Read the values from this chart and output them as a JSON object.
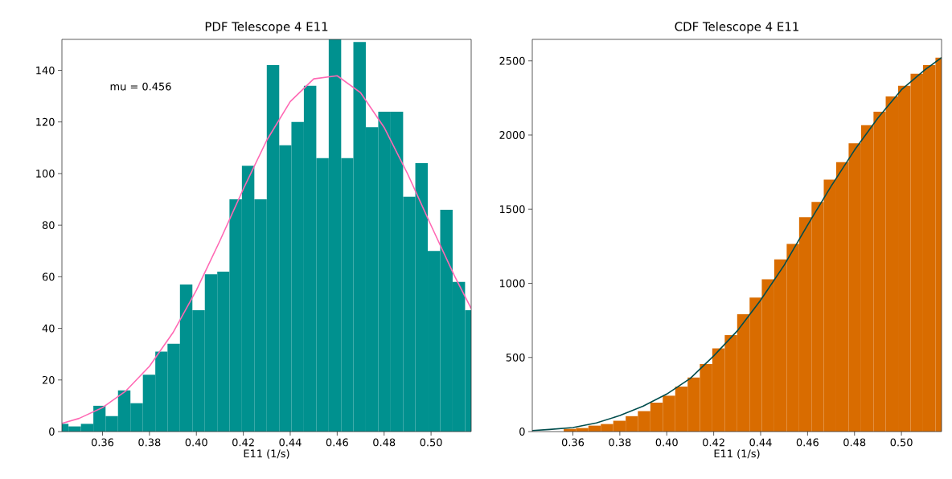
{
  "chart_data": [
    {
      "type": "histogram",
      "title": "PDF Telescope 4 E11",
      "xlabel": "E11 (1/s)",
      "color": "#00918f",
      "bins": [
        0.3427,
        0.3455,
        0.3508,
        0.3561,
        0.3613,
        0.3666,
        0.3719,
        0.3772,
        0.3825,
        0.3877,
        0.393,
        0.3983,
        0.4036,
        0.4089,
        0.4141,
        0.4194,
        0.4247,
        0.43,
        0.4353,
        0.4405,
        0.4458,
        0.4511,
        0.4564,
        0.4617,
        0.4669,
        0.4722,
        0.4775,
        0.4828,
        0.4881,
        0.4933,
        0.4986,
        0.5039,
        0.5092,
        0.5145,
        0.5171
      ],
      "values": [
        3,
        2,
        3,
        10,
        6,
        16,
        11,
        22,
        31,
        34,
        57,
        47,
        61,
        62,
        90,
        103,
        90,
        142,
        111,
        120,
        134,
        106,
        152,
        106,
        151,
        118,
        124,
        124,
        91,
        104,
        70,
        86,
        58,
        47
      ],
      "series": [
        {
          "type": "line",
          "color": "#ff69b4",
          "x": [
            0.3427,
            0.35,
            0.36,
            0.37,
            0.38,
            0.39,
            0.4,
            0.41,
            0.42,
            0.43,
            0.44,
            0.45,
            0.46,
            0.47,
            0.48,
            0.49,
            0.5,
            0.51,
            0.5171
          ],
          "values": [
            3.2,
            5.1,
            9.3,
            15.8,
            25.3,
            38.3,
            54.8,
            73.9,
            94.0,
            112.9,
            127.9,
            136.7,
            137.9,
            131.3,
            117.9,
            99.9,
            79.9,
            60.3,
            47.7
          ]
        }
      ],
      "annotations": [
        "mu =  0.456"
      ],
      "xlim": [
        0.3427,
        0.5171
      ],
      "ylim": [
        0,
        152
      ],
      "xticks": [
        {
          "value": 0.36,
          "label": "0.36"
        },
        {
          "value": 0.38,
          "label": "0.38"
        },
        {
          "value": 0.4,
          "label": "0.40"
        },
        {
          "value": 0.42,
          "label": "0.42"
        },
        {
          "value": 0.44,
          "label": "0.44"
        },
        {
          "value": 0.46,
          "label": "0.46"
        },
        {
          "value": 0.48,
          "label": "0.48"
        },
        {
          "value": 0.5,
          "label": "0.50"
        }
      ],
      "yticks": [
        0,
        20,
        40,
        60,
        80,
        100,
        120,
        140
      ]
    },
    {
      "type": "histogram",
      "title": "CDF Telescope 4 E11",
      "xlabel": "E11 (1/s)",
      "color": "#d96c00",
      "bins": [
        0.3561,
        0.3613,
        0.3666,
        0.3719,
        0.3772,
        0.3825,
        0.3877,
        0.393,
        0.3983,
        0.4036,
        0.4089,
        0.4141,
        0.4194,
        0.4247,
        0.43,
        0.4353,
        0.4405,
        0.4458,
        0.4511,
        0.4564,
        0.4617,
        0.4669,
        0.4722,
        0.4775,
        0.4828,
        0.4881,
        0.4933,
        0.4986,
        0.5039,
        0.5092,
        0.5145,
        0.5171
      ],
      "values": [
        18,
        24,
        40,
        51,
        73,
        104,
        138,
        195,
        242,
        303,
        365,
        455,
        561,
        651,
        792,
        904,
        1027,
        1161,
        1266,
        1446,
        1549,
        1699,
        1817,
        1944,
        2066,
        2157,
        2260,
        2332,
        2413,
        2471,
        2522
      ],
      "series": [
        {
          "type": "line",
          "color": "#004d4d",
          "x": [
            0.3427,
            0.35,
            0.36,
            0.37,
            0.38,
            0.39,
            0.4,
            0.41,
            0.42,
            0.43,
            0.44,
            0.45,
            0.46,
            0.47,
            0.48,
            0.49,
            0.5,
            0.51,
            0.5171
          ],
          "values": [
            7,
            14,
            27,
            58,
            108,
            172,
            253,
            358,
            510,
            678,
            886,
            1121,
            1392,
            1654,
            1898,
            2115,
            2305,
            2440,
            2522
          ]
        }
      ],
      "xlim": [
        0.3427,
        0.5171
      ],
      "ylim": [
        0,
        2645
      ],
      "xticks": [
        {
          "value": 0.36,
          "label": "0.36"
        },
        {
          "value": 0.38,
          "label": "0.38"
        },
        {
          "value": 0.4,
          "label": "0.40"
        },
        {
          "value": 0.42,
          "label": "0.42"
        },
        {
          "value": 0.44,
          "label": "0.44"
        },
        {
          "value": 0.46,
          "label": "0.46"
        },
        {
          "value": 0.48,
          "label": "0.48"
        },
        {
          "value": 0.5,
          "label": "0.50"
        }
      ],
      "yticks": [
        0,
        500,
        1000,
        1500,
        2000,
        2500
      ]
    }
  ]
}
